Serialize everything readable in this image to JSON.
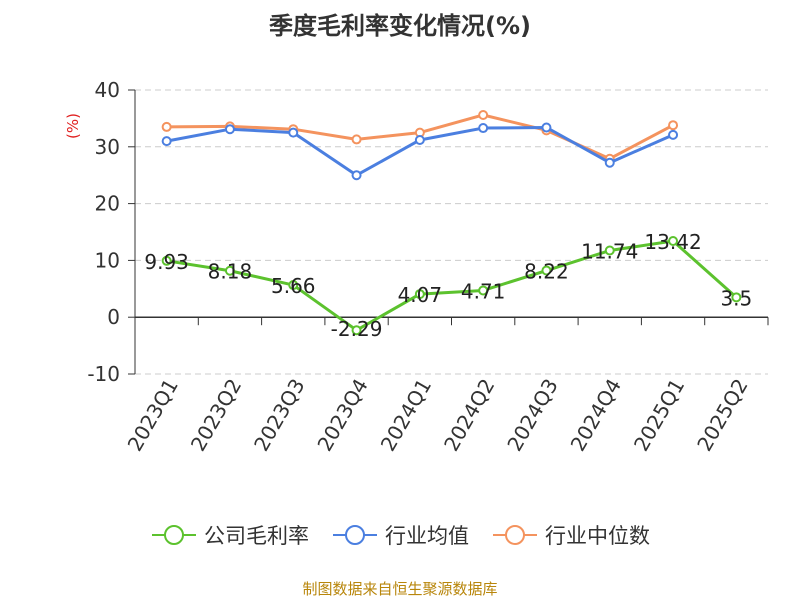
{
  "chart_data": {
    "type": "line",
    "title": "季度毛利率变化情况(%)",
    "ylabel": "(%)",
    "ylim": [
      -10,
      40
    ],
    "yticks": [
      40,
      30,
      20,
      10,
      0,
      -10
    ],
    "grid": true,
    "legend_position": "bottom",
    "categories": [
      "2023Q1",
      "2023Q2",
      "2023Q3",
      "2023Q4",
      "2024Q1",
      "2024Q2",
      "2024Q3",
      "2024Q4",
      "2025Q1",
      "2025Q2"
    ],
    "series": [
      {
        "name": "公司毛利率",
        "color": "#5cc22e",
        "values": [
          9.93,
          8.18,
          5.66,
          -2.29,
          4.07,
          4.71,
          8.22,
          11.74,
          13.42,
          3.5
        ],
        "labels": [
          "9.93",
          "8.18",
          "5.66",
          "-2.29",
          "4.07",
          "4.71",
          "8.22",
          "11.74",
          "13.42",
          "3.5"
        ]
      },
      {
        "name": "行业均值",
        "color": "#4b7fe0",
        "values": [
          31.0,
          33.1,
          32.5,
          25.0,
          31.2,
          33.3,
          33.4,
          27.2,
          32.1,
          null
        ]
      },
      {
        "name": "行业中位数",
        "color": "#f4935e",
        "values": [
          33.5,
          33.6,
          33.1,
          31.3,
          32.5,
          35.6,
          32.9,
          27.9,
          33.8,
          null
        ]
      }
    ]
  },
  "footer": {
    "source": "制图数据来自恒生聚源数据库",
    "source_color": "#b8860b"
  }
}
